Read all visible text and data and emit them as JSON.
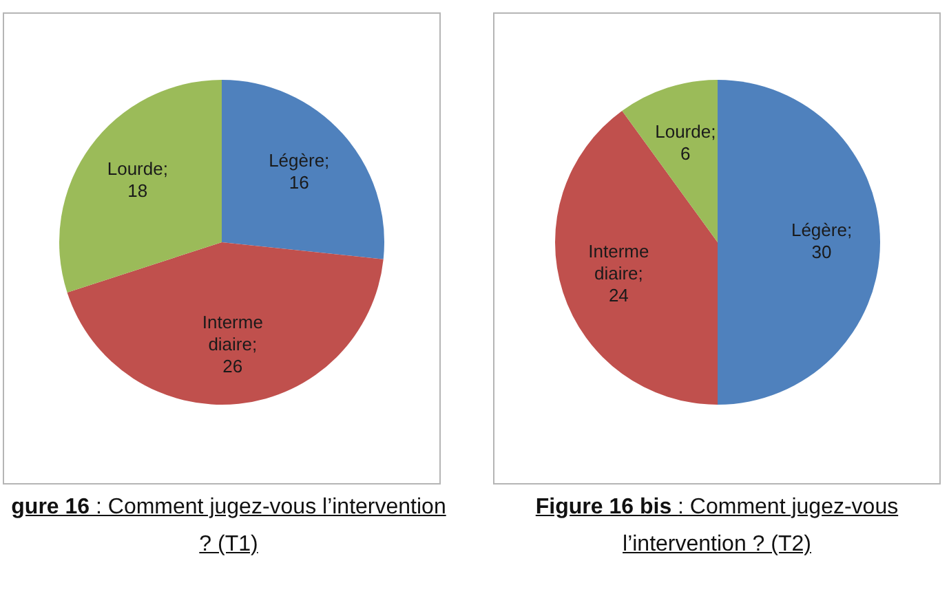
{
  "chart_data": [
    {
      "type": "pie",
      "title": "gure 16 : Comment jugez-vous l’intervention ? (T1)",
      "categories": [
        null,
        null,
        null
      ],
      "values": [
        16,
        26,
        18
      ],
      "colors": [
        "#4f81bd",
        "#c0504d",
        "#9bbb59"
      ],
      "value_labels": [
        "Légère; 16",
        "Intermediaire; 26",
        "Lourde; 18"
      ]
    },
    {
      "type": "pie",
      "title": "Figure 16 bis : Comment jugez-vous l’intervention ? (T2)",
      "categories": [
        null,
        null,
        null
      ],
      "values": [
        30,
        24,
        6
      ],
      "colors": [
        "#4f81bd",
        "#c0504d",
        "#9bbb59"
      ],
      "value_labels": [
        "Légère; 30",
        "Intermediaire; 24",
        "Lourde; 6"
      ]
    }
  ]
}
